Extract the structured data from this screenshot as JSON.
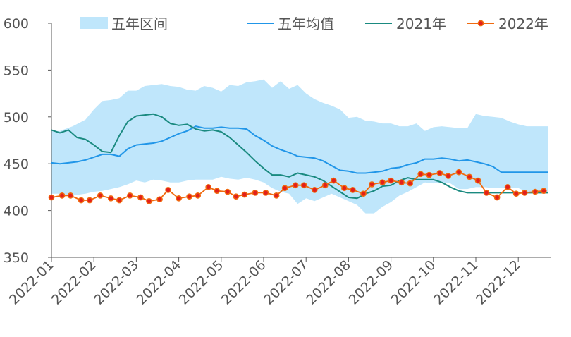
{
  "chart_data": {
    "type": "line",
    "title": "",
    "xlabel": "",
    "ylabel": "",
    "ylim": [
      350,
      600
    ],
    "y_ticks": [
      350,
      400,
      450,
      500,
      550,
      600
    ],
    "x_tick_labels": [
      "2022-01",
      "2022-02",
      "2022-03",
      "2022-04",
      "2022-05",
      "2022-06",
      "2022-07",
      "2022-08",
      "2022-09",
      "2022-10",
      "2022-11",
      "2022-12"
    ],
    "x_domain": [
      0,
      11.7
    ],
    "legend_position": "top",
    "grid": false,
    "band": {
      "name": "五年区间",
      "color": "#bfe6fb",
      "x": [
        0,
        0.2,
        0.5,
        0.8,
        1.0,
        1.2,
        1.4,
        1.6,
        1.8,
        2.0,
        2.2,
        2.4,
        2.6,
        2.8,
        3.0,
        3.2,
        3.4,
        3.6,
        3.8,
        4.0,
        4.2,
        4.4,
        4.6,
        4.8,
        5.0,
        5.2,
        5.4,
        5.6,
        5.8,
        6.0,
        6.2,
        6.4,
        6.6,
        6.8,
        7.0,
        7.2,
        7.4,
        7.6,
        7.8,
        8.0,
        8.2,
        8.4,
        8.6,
        8.8,
        9.0,
        9.2,
        9.4,
        9.6,
        9.8,
        10.0,
        10.2,
        10.4,
        10.6,
        10.8,
        11.0,
        11.2,
        11.4,
        11.6,
        11.7
      ],
      "upper": [
        485,
        485,
        490,
        497,
        508,
        517,
        518,
        520,
        528,
        528,
        533,
        534,
        535,
        533,
        532,
        529,
        528,
        533,
        531,
        527,
        534,
        533,
        537,
        538,
        540,
        531,
        538,
        530,
        534,
        525,
        519,
        515,
        512,
        508,
        499,
        500,
        496,
        495,
        493,
        493,
        490,
        490,
        493,
        485,
        489,
        490,
        489,
        488,
        488,
        503,
        501,
        500,
        499,
        495,
        492,
        490,
        490,
        490,
        490
      ],
      "lower": [
        418,
        418,
        416,
        418,
        420,
        421,
        423,
        425,
        428,
        432,
        430,
        433,
        432,
        430,
        430,
        432,
        433,
        433,
        433,
        436,
        434,
        433,
        435,
        433,
        430,
        424,
        420,
        418,
        407,
        413,
        410,
        414,
        418,
        414,
        410,
        406,
        397,
        397,
        404,
        409,
        416,
        420,
        425,
        430,
        429,
        430,
        429,
        423,
        423,
        425,
        425,
        424,
        424,
        424,
        424,
        420,
        419,
        419,
        419
      ]
    },
    "series": [
      {
        "name": "五年均值",
        "color": "#2196e8",
        "x": [
          0,
          0.2,
          0.4,
          0.6,
          0.8,
          1.0,
          1.2,
          1.4,
          1.6,
          1.8,
          2.0,
          2.2,
          2.4,
          2.6,
          2.8,
          3.0,
          3.2,
          3.4,
          3.6,
          3.8,
          4.0,
          4.2,
          4.4,
          4.6,
          4.8,
          5.0,
          5.2,
          5.4,
          5.6,
          5.8,
          6.0,
          6.2,
          6.4,
          6.6,
          6.8,
          7.0,
          7.2,
          7.4,
          7.6,
          7.8,
          8.0,
          8.2,
          8.4,
          8.6,
          8.8,
          9.0,
          9.2,
          9.4,
          9.6,
          9.8,
          10.0,
          10.2,
          10.4,
          10.6,
          10.8,
          11.0,
          11.2,
          11.4,
          11.7
        ],
        "values": [
          451,
          450,
          451,
          452,
          454,
          457,
          460,
          460,
          458,
          466,
          470,
          471,
          472,
          474,
          478,
          482,
          485,
          490,
          488,
          488,
          489,
          488,
          488,
          487,
          480,
          475,
          469,
          465,
          462,
          458,
          457,
          456,
          453,
          448,
          443,
          442,
          440,
          440,
          441,
          442,
          445,
          446,
          449,
          451,
          455,
          455,
          456,
          455,
          453,
          454,
          452,
          450,
          447,
          441,
          441,
          441,
          441,
          441,
          441
        ]
      },
      {
        "name": "2021年",
        "color": "#1a8a80",
        "x": [
          0,
          0.2,
          0.4,
          0.6,
          0.8,
          1.0,
          1.2,
          1.4,
          1.6,
          1.8,
          2.0,
          2.2,
          2.4,
          2.6,
          2.8,
          3.0,
          3.2,
          3.4,
          3.6,
          3.8,
          4.0,
          4.2,
          4.4,
          4.6,
          4.8,
          5.0,
          5.2,
          5.4,
          5.6,
          5.8,
          6.0,
          6.2,
          6.4,
          6.6,
          6.8,
          7.0,
          7.2,
          7.4,
          7.6,
          7.8,
          8.0,
          8.2,
          8.4,
          8.6,
          8.8,
          9.0,
          9.2,
          9.4,
          9.6,
          9.8,
          10.0,
          10.2,
          10.4,
          10.6,
          10.8,
          11.0,
          11.2,
          11.4,
          11.7
        ],
        "values": [
          486,
          483,
          486,
          478,
          476,
          470,
          463,
          462,
          480,
          495,
          501,
          502,
          503,
          500,
          493,
          491,
          492,
          487,
          485,
          486,
          484,
          478,
          470,
          462,
          453,
          445,
          438,
          438,
          436,
          440,
          438,
          436,
          432,
          426,
          420,
          414,
          413,
          418,
          421,
          426,
          427,
          432,
          435,
          433,
          433,
          433,
          430,
          425,
          421,
          419,
          419,
          419,
          419,
          419,
          419,
          419,
          419,
          419,
          419
        ]
      },
      {
        "name": "2022年",
        "color": "#f06a0f",
        "marker_color": "#e3201b",
        "x": [
          0,
          0.25,
          0.45,
          0.7,
          0.9,
          1.15,
          1.4,
          1.6,
          1.85,
          2.1,
          2.3,
          2.55,
          2.75,
          3.0,
          3.25,
          3.45,
          3.7,
          3.9,
          4.15,
          4.35,
          4.55,
          4.8,
          5.05,
          5.3,
          5.5,
          5.75,
          5.95,
          6.2,
          6.45,
          6.65,
          6.9,
          7.1,
          7.35,
          7.55,
          7.8,
          8.0,
          8.25,
          8.45,
          8.7,
          8.9,
          9.15,
          9.35,
          9.6,
          9.85,
          10.05,
          10.25,
          10.5,
          10.75,
          10.95,
          11.15,
          11.4,
          11.6
        ],
        "values": [
          414,
          416,
          416,
          411,
          411,
          416,
          413,
          411,
          416,
          414,
          410,
          412,
          422,
          413,
          415,
          416,
          425,
          421,
          420,
          415,
          417,
          419,
          419,
          416,
          424,
          427,
          427,
          422,
          427,
          432,
          424,
          422,
          418,
          428,
          430,
          432,
          430,
          429,
          439,
          438,
          440,
          437,
          441,
          436,
          432,
          419,
          414,
          425,
          418,
          419,
          420,
          421
        ]
      }
    ]
  }
}
